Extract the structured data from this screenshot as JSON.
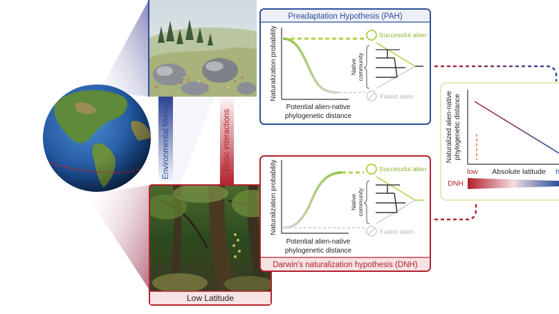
{
  "pah_panel": {
    "title": "Preadaptation Hypothesis (PAH)",
    "ylabel": "Naturalization probability",
    "xlabel_line1": "Potential alien-native",
    "xlabel_line2": "phylogenetic distance",
    "successful_label": "Successful alien",
    "failed_label": "Failed alien",
    "community_line1": "Native",
    "community_line2": "community"
  },
  "dnh_panel": {
    "title": "Darwin's naturalization hypothesis (DNH)",
    "ylabel": "Naturalization probability",
    "xlabel_line1": "Potential alien-native",
    "xlabel_line2": "phylogenetic distance",
    "successful_label": "Successful alien",
    "failed_label": "Failed alien",
    "community_line1": "Native",
    "community_line2": "community"
  },
  "env_filtering_label": "Environmental filtering",
  "biotic_interactions_label": "Biotic interactions",
  "low_latitude_label": "Low Latitude",
  "summary_plot": {
    "ylabel_line1": "Naturalized alien-native",
    "ylabel_line2": "phylogenetic distance",
    "xlabel": "Absolute latitude",
    "x_low": "low",
    "x_high": "h",
    "gradient_label": "DNH"
  },
  "colors": {
    "pah_blue": "#2b4e9b",
    "dnh_red": "#b5222f",
    "success_green": "#9cc93a",
    "summary_frame": "#ece9b9"
  }
}
